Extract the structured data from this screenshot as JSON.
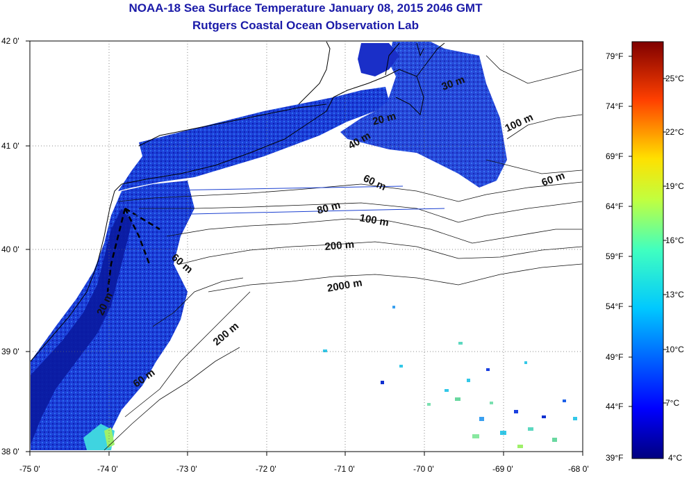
{
  "title": {
    "line1": "NOAA-18 Sea Surface Temperature January 08, 2015 2046 GMT",
    "line2": "Rutgers Coastal Ocean Observation Lab"
  },
  "map": {
    "lat_labels": [
      "42 0'",
      "41 0'",
      "40 0'",
      "39 0'",
      "38 0'"
    ],
    "lon_labels": [
      "-75 0'",
      "-74 0'",
      "-73 0'",
      "-72 0'",
      "-71 0'",
      "-70 0'",
      "-69 0'",
      "-68 0'"
    ],
    "depth_labels": [
      {
        "text": "30 m"
      },
      {
        "text": "20 m"
      },
      {
        "text": "40 m"
      },
      {
        "text": "100 m"
      },
      {
        "text": "60 m"
      },
      {
        "text": "60 m"
      },
      {
        "text": "80 m"
      },
      {
        "text": "100 m"
      },
      {
        "text": "200 m"
      },
      {
        "text": "60 m"
      },
      {
        "text": "2000 m"
      },
      {
        "text": "20 m"
      },
      {
        "text": "200 m"
      },
      {
        "text": "60 m"
      }
    ]
  },
  "colorbar": {
    "f_labels": [
      "79°F",
      "74°F",
      "69°F",
      "64°F",
      "59°F",
      "54°F",
      "49°F",
      "44°F",
      "39°F"
    ],
    "c_labels": [
      "25°C",
      "22°C",
      "19°C",
      "16°C",
      "13°C",
      "10°C",
      "7°C",
      "4°C"
    ]
  },
  "colors": {
    "title": "#1a1aa8",
    "cold": "#00007f",
    "warm": "#7f0000"
  }
}
